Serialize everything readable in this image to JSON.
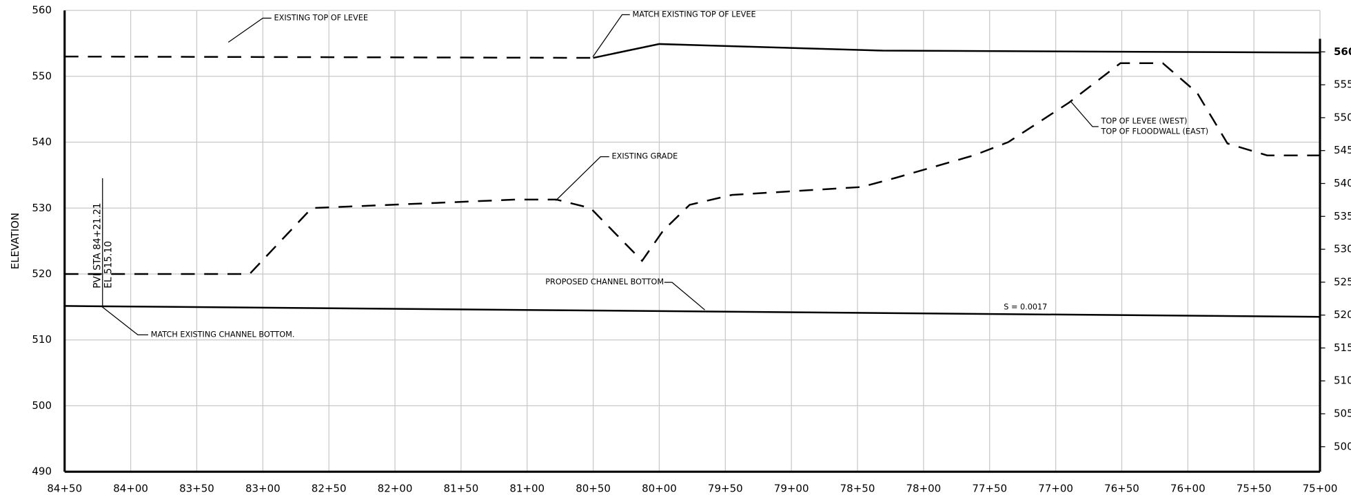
{
  "chart_data": {
    "type": "line",
    "y_label": "ELEVATION",
    "xlim": [
      8450,
      7500
    ],
    "xticks": [
      {
        "value": 8450,
        "label": "84+50"
      },
      {
        "value": 8400,
        "label": "84+00"
      },
      {
        "value": 8350,
        "label": "83+50"
      },
      {
        "value": 8300,
        "label": "83+00"
      },
      {
        "value": 8250,
        "label": "82+50"
      },
      {
        "value": 8200,
        "label": "82+00"
      },
      {
        "value": 8150,
        "label": "81+50"
      },
      {
        "value": 8100,
        "label": "81+00"
      },
      {
        "value": 8050,
        "label": "80+50"
      },
      {
        "value": 8000,
        "label": "80+00"
      },
      {
        "value": 7950,
        "label": "79+50"
      },
      {
        "value": 7900,
        "label": "79+00"
      },
      {
        "value": 7850,
        "label": "78+50"
      },
      {
        "value": 7800,
        "label": "78+00"
      },
      {
        "value": 7750,
        "label": "77+50"
      },
      {
        "value": 7700,
        "label": "77+00"
      },
      {
        "value": 7650,
        "label": "76+50"
      },
      {
        "value": 7600,
        "label": "76+00"
      },
      {
        "value": 7550,
        "label": "75+50"
      },
      {
        "value": 7500,
        "label": "75+00"
      }
    ],
    "ylim": [
      490,
      560
    ],
    "yticks": [
      490,
      500,
      510,
      520,
      530,
      540,
      550,
      560
    ],
    "y2lim": [
      496.2,
      566.3
    ],
    "y2ticks": [
      500,
      505,
      510,
      515,
      520,
      525,
      530,
      535,
      540,
      545,
      550,
      555,
      560
    ],
    "grid": true,
    "series": [
      {
        "color": "#000000",
        "dashed": true,
        "x": [
          8450,
          8050
        ],
        "values": [
          553,
          552.8
        ]
      },
      {
        "color": "#000000",
        "dashed": false,
        "x": [
          8050,
          8000,
          7831,
          7500
        ],
        "values": [
          552.8,
          554.9,
          553.9,
          553.6
        ]
      },
      {
        "color": "#000000",
        "dashed": true,
        "x": [
          8450,
          8310,
          8263,
          8108,
          8078,
          8052,
          8013,
          7997,
          7977,
          7945,
          7847,
          7821,
          7762,
          7736,
          7690,
          7651,
          7619,
          7593,
          7570,
          7540,
          7500
        ],
        "values": [
          520,
          520,
          530,
          531.3,
          531.3,
          530,
          522,
          526.6,
          530.5,
          532,
          533.2,
          534.6,
          538,
          540,
          546,
          552,
          552,
          547.5,
          539.8,
          538,
          538
        ]
      },
      {
        "color": "#000000",
        "dashed": false,
        "x": [
          8450,
          7500
        ],
        "values": [
          515.15,
          513.5
        ]
      }
    ],
    "annotations": [
      "EXISTING TOP OF LEVEE",
      "MATCH EXISTING TOP OF LEVEE",
      "EXISTING GRADE",
      "TOP OF LEVEE (WEST)",
      "TOP OF FLOODWALL (EAST)",
      "PROPOSED CHANNEL BOTTOM",
      "S = 0.0017",
      "MATCH EXISTING CHANNEL BOTTOM.",
      "PVI  STA 84+21.21",
      "EL  515.10"
    ]
  }
}
